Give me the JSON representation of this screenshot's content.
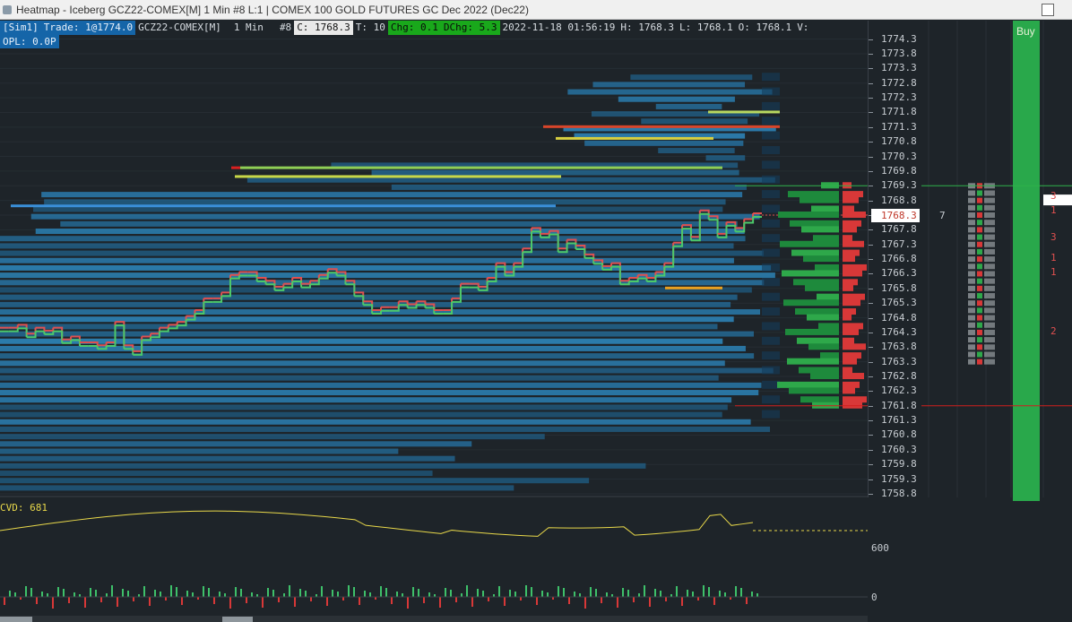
{
  "window": {
    "title": "Heatmap - Iceberg GCZ22-COMEX[M]  1 Min   #8 L:1 | COMEX 100 GOLD FUTURES GC Dec 2022 (Dec22)",
    "icon": "heatmap-app-icon",
    "control_icon": "window-maximize-icon"
  },
  "infobar": {
    "mode": "[Sim1]",
    "trade": "Trade: 1@1774.0",
    "symbol": "GCZ22-COMEX[M]",
    "timeframe": "1 Min",
    "chart_num": "#8",
    "close": "C: 1768.3",
    "trades": "T: 10",
    "chg": "Chg: 0.1",
    "dchg": "DChg: 5.3",
    "datetime": "2022-11-18 01:56:19",
    "high": "H: 1768.3",
    "low": "L: 1768.1",
    "open": "O: 1768.1",
    "volume": "V:"
  },
  "opl": "OPL: 0.0P",
  "price_axis": {
    "ticks": [
      "1774.3",
      "1773.8",
      "1773.3",
      "1772.8",
      "1772.3",
      "1771.8",
      "1771.3",
      "1770.8",
      "1770.3",
      "1769.8",
      "1769.3",
      "1768.8",
      "1768.3",
      "1767.8",
      "1767.3",
      "1766.8",
      "1766.3",
      "1765.8",
      "1765.3",
      "1764.8",
      "1764.3",
      "1763.8",
      "1763.3",
      "1762.8",
      "1762.3",
      "1761.8",
      "1761.3",
      "1760.8",
      "1760.3",
      "1759.8",
      "1759.3",
      "1758.8"
    ],
    "current_price": "1768.3",
    "current_price_note": "7",
    "high_line": 1769.3,
    "low_line": 1761.8
  },
  "cvd": {
    "label": "CVD: 681",
    "axis_labels": [
      "600",
      "0"
    ]
  },
  "right_panel": {
    "buy_label": "Buy",
    "side_numbers": [
      "3",
      "1",
      "3",
      "1",
      "1",
      "2"
    ]
  },
  "colors": {
    "background": "#1e2429",
    "heat_blue": "#1f6fa8",
    "price_up": "#4cc96a",
    "price_down": "#e05050",
    "cvd_line": "#e8d84a",
    "buy_column": "#29a84b",
    "high_line": "#2fb24a",
    "low_line": "#d01e1e"
  },
  "chart_data": {
    "type": "line",
    "title": "",
    "xlabel": "",
    "ylabel": "",
    "ylim": [
      1758.5,
      1774.3
    ],
    "series": [
      {
        "values": [
          1764.4,
          1764.4,
          1764.5,
          1764.2,
          1764.4,
          1764.3,
          1764.4,
          1764.0,
          1764.1,
          1763.9,
          1763.9,
          1763.8,
          1763.9,
          1764.6,
          1763.8,
          1763.6,
          1764.1,
          1764.2,
          1764.4,
          1764.5,
          1764.6,
          1764.8,
          1765.0,
          1765.4,
          1765.4,
          1765.6,
          1766.2,
          1766.3,
          1766.3,
          1766.1,
          1766.0,
          1765.8,
          1765.9,
          1766.1,
          1765.9,
          1766.0,
          1766.2,
          1766.4,
          1766.3,
          1766.0,
          1765.6,
          1765.3,
          1765.0,
          1765.1,
          1765.1,
          1765.3,
          1765.2,
          1765.3,
          1765.2,
          1765.0,
          1765.0,
          1765.4,
          1765.9,
          1765.9,
          1765.8,
          1766.1,
          1766.6,
          1766.3,
          1766.6,
          1767.1,
          1767.8,
          1767.6,
          1767.7,
          1767.1,
          1767.4,
          1767.2,
          1766.9,
          1766.7,
          1766.5,
          1766.6,
          1766.0,
          1766.1,
          1766.2,
          1766.1,
          1766.3,
          1766.6,
          1767.3,
          1767.9,
          1767.5,
          1768.4,
          1768.2,
          1767.6,
          1768.0,
          1767.8,
          1768.1,
          1768.3,
          1768.3
        ]
      }
    ],
    "cvd_current": 681,
    "volume_axis": [
      0
    ]
  }
}
